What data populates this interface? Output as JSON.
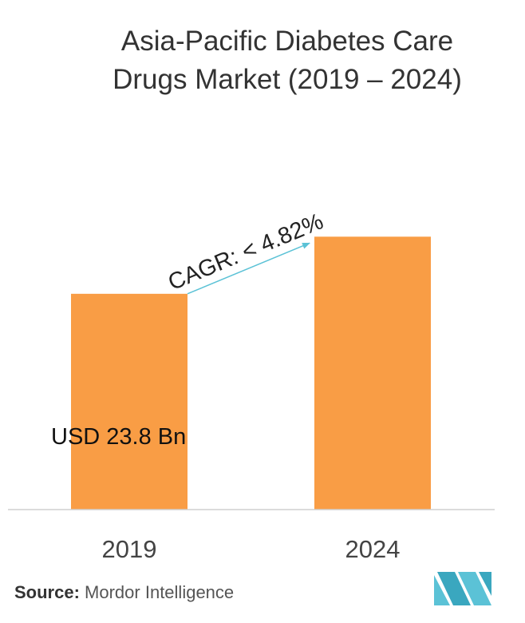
{
  "title_line1": "Asia-Pacific Diabetes Care",
  "title_line2": "Drugs Market (2019 – 2024)",
  "chart_data": {
    "type": "bar",
    "categories": [
      "2019",
      "2024"
    ],
    "values": [
      23.8,
      30.1
    ],
    "ylim": [
      0,
      37
    ],
    "xlabel": "",
    "ylabel": "",
    "grid": false,
    "bar_color": "#F99D45",
    "annotations": {
      "value_label": "USD 23.8 Bn",
      "cagr_label": "CAGR: < 4.82%",
      "arrow_color": "#5BC2D6"
    }
  },
  "source": {
    "label": "Source:",
    "text": "Mordor Intelligence"
  },
  "logo": {
    "icon": "mordor-intelligence-logo",
    "color": "#5BC2D6"
  }
}
